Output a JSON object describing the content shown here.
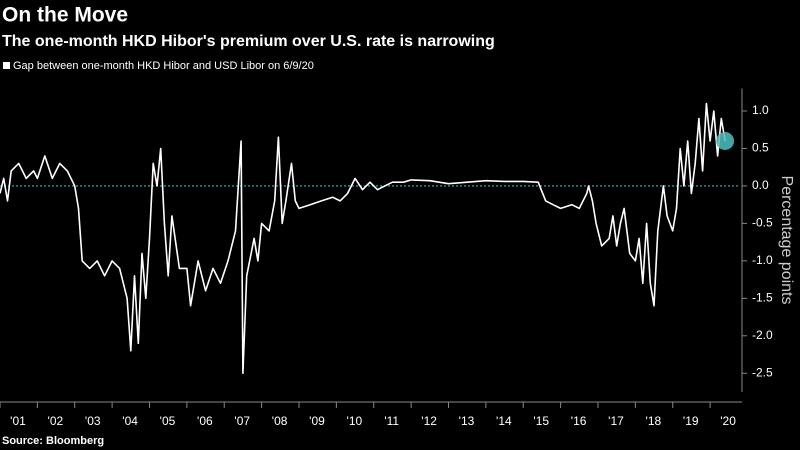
{
  "chart_data": {
    "type": "line",
    "title": "On the Move",
    "subtitle": "The one-month HKD Hibor's premium over U.S. rate is narrowing",
    "y_label": "Percentage points",
    "source": "Source: Bloomberg",
    "x": [
      2001.0,
      2001.1,
      2001.2,
      2001.3,
      2001.5,
      2001.7,
      2001.9,
      2002.0,
      2002.2,
      2002.4,
      2002.6,
      2002.8,
      2003.0,
      2003.1,
      2003.2,
      2003.4,
      2003.6,
      2003.8,
      2004.0,
      2004.2,
      2004.4,
      2004.5,
      2004.6,
      2004.7,
      2004.8,
      2004.9,
      2005.0,
      2005.1,
      2005.2,
      2005.3,
      2005.4,
      2005.5,
      2005.6,
      2005.8,
      2006.0,
      2006.1,
      2006.3,
      2006.5,
      2006.7,
      2006.9,
      2007.1,
      2007.3,
      2007.45,
      2007.5,
      2007.6,
      2007.8,
      2007.9,
      2008.0,
      2008.2,
      2008.35,
      2008.45,
      2008.55,
      2008.65,
      2008.8,
      2008.9,
      2009.0,
      2009.3,
      2009.6,
      2009.9,
      2010.1,
      2010.3,
      2010.5,
      2010.7,
      2010.9,
      2011.1,
      2011.3,
      2011.5,
      2011.8,
      2012.0,
      2012.5,
      2013.0,
      2013.5,
      2014.0,
      2014.5,
      2015.0,
      2015.4,
      2015.6,
      2015.8,
      2016.0,
      2016.3,
      2016.5,
      2016.7,
      2016.75,
      2016.85,
      2016.95,
      2017.1,
      2017.3,
      2017.4,
      2017.5,
      2017.6,
      2017.7,
      2017.85,
      2018.0,
      2018.1,
      2018.2,
      2018.3,
      2018.4,
      2018.5,
      2018.6,
      2018.75,
      2018.85,
      2019.0,
      2019.1,
      2019.2,
      2019.3,
      2019.4,
      2019.5,
      2019.6,
      2019.7,
      2019.8,
      2019.9,
      2020.0,
      2020.1,
      2020.2,
      2020.3,
      2020.4
    ],
    "series": [
      {
        "name": "Gap between one-month HKD Hibor and USD Libor on 6/9/20",
        "color": "#ffffff",
        "values": [
          -0.1,
          0.1,
          -0.2,
          0.2,
          0.3,
          0.1,
          0.2,
          0.1,
          0.4,
          0.1,
          0.3,
          0.2,
          0.0,
          -0.3,
          -1.0,
          -1.1,
          -1.0,
          -1.2,
          -1.0,
          -1.1,
          -1.5,
          -2.2,
          -1.2,
          -2.1,
          -0.9,
          -1.5,
          -0.7,
          0.3,
          0.0,
          0.5,
          -0.5,
          -1.2,
          -0.4,
          -1.1,
          -1.1,
          -1.6,
          -1.0,
          -1.4,
          -1.1,
          -1.3,
          -1.0,
          -0.6,
          0.6,
          -2.5,
          -1.2,
          -0.7,
          -1.0,
          -0.5,
          -0.6,
          -0.2,
          0.65,
          -0.5,
          -0.2,
          0.3,
          -0.2,
          -0.3,
          -0.25,
          -0.2,
          -0.15,
          -0.2,
          -0.1,
          0.1,
          -0.05,
          0.05,
          -0.05,
          0.0,
          0.05,
          0.05,
          0.08,
          0.07,
          0.03,
          0.05,
          0.07,
          0.06,
          0.06,
          0.05,
          -0.2,
          -0.25,
          -0.3,
          -0.25,
          -0.3,
          -0.1,
          0.0,
          -0.2,
          -0.5,
          -0.8,
          -0.7,
          -0.4,
          -0.8,
          -0.5,
          -0.3,
          -0.9,
          -1.0,
          -0.7,
          -1.3,
          -0.5,
          -1.3,
          -1.6,
          -0.6,
          0.0,
          -0.4,
          -0.6,
          -0.3,
          0.5,
          0.0,
          0.6,
          -0.1,
          0.3,
          0.9,
          0.2,
          1.1,
          0.6,
          1.0,
          0.4,
          0.9,
          0.6
        ]
      }
    ],
    "marker_color": "#4fc1c0",
    "zero_line_color": "#3fb7c8",
    "xlim": [
      2001.0,
      2020.8
    ],
    "xticks": [
      {
        "value": 2001,
        "label": "'01"
      },
      {
        "value": 2002,
        "label": "'02"
      },
      {
        "value": 2003,
        "label": "'03"
      },
      {
        "value": 2004,
        "label": "'04"
      },
      {
        "value": 2005,
        "label": "'05"
      },
      {
        "value": 2006,
        "label": "'06"
      },
      {
        "value": 2007,
        "label": "'07"
      },
      {
        "value": 2008,
        "label": "'08"
      },
      {
        "value": 2009,
        "label": "'09"
      },
      {
        "value": 2010,
        "label": "'10"
      },
      {
        "value": 2011,
        "label": "'11"
      },
      {
        "value": 2012,
        "label": "'12"
      },
      {
        "value": 2013,
        "label": "'13"
      },
      {
        "value": 2014,
        "label": "'14"
      },
      {
        "value": 2015,
        "label": "'15"
      },
      {
        "value": 2016,
        "label": "'16"
      },
      {
        "value": 2017,
        "label": "'17"
      },
      {
        "value": 2018,
        "label": "'18"
      },
      {
        "value": 2019,
        "label": "'19"
      },
      {
        "value": 2020,
        "label": "'20"
      }
    ],
    "ylim": [
      -2.75,
      1.3
    ],
    "yticks": [
      {
        "value": 1,
        "label": "1.0"
      },
      0.5,
      {
        "value": 0,
        "label": "0.0"
      },
      -0.5,
      {
        "value": -1,
        "label": "-1.0"
      },
      -1.5,
      {
        "value": -2,
        "label": "-2.0"
      },
      -2.5
    ]
  }
}
